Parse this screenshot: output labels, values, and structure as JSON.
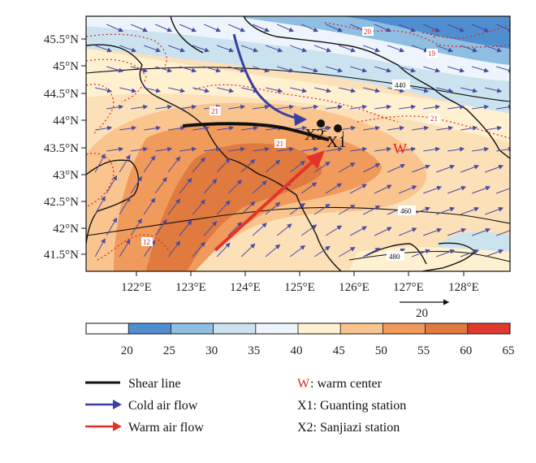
{
  "axes": {
    "lat_labels": [
      "45.5°N",
      "45°N",
      "44.5°N",
      "44°N",
      "43.5°N",
      "43°N",
      "42.5°N",
      "42°N",
      "41.5°N"
    ],
    "lon_labels": [
      "122°E",
      "123°E",
      "124°E",
      "125°E",
      "126°E",
      "127°E",
      "128°E"
    ]
  },
  "reference_vector": {
    "label": "20"
  },
  "colorbar": {
    "ticks": [
      "20",
      "25",
      "30",
      "35",
      "40",
      "45",
      "50",
      "55",
      "60",
      "65"
    ],
    "colors": [
      "#ffffff",
      "#4f8fd0",
      "#8ebfe3",
      "#cbe3ef",
      "#eef4fb",
      "#fff0d0",
      "#f9c48e",
      "#f09a5c",
      "#e07a3e",
      "#e03a2e"
    ]
  },
  "contours": {
    "height_labels": [
      "440",
      "460",
      "480"
    ],
    "temperature_labels": [
      "20",
      "19",
      "21",
      "21",
      "21",
      "12"
    ]
  },
  "markers": {
    "warm_center": "W",
    "x1": "X1",
    "x1_sup": "1",
    "x2": "X2",
    "x2_sup": "2"
  },
  "legend": {
    "shear_line": "Shear line",
    "cold_air": "Cold air flow",
    "warm_air": "Warm air flow",
    "warm_center_symbol": "W",
    "warm_center_text": ": warm center",
    "x1": "X1: Guanting station",
    "x2": "X2: Sanjiazi station"
  },
  "colors": {
    "shear_line": "#111111",
    "cold_air": "#3a3fa0",
    "warm_air": "#e6332a",
    "wind_vector": "#4a4aa0",
    "temperature_contour": "#e02020",
    "boundary": "#111111"
  }
}
